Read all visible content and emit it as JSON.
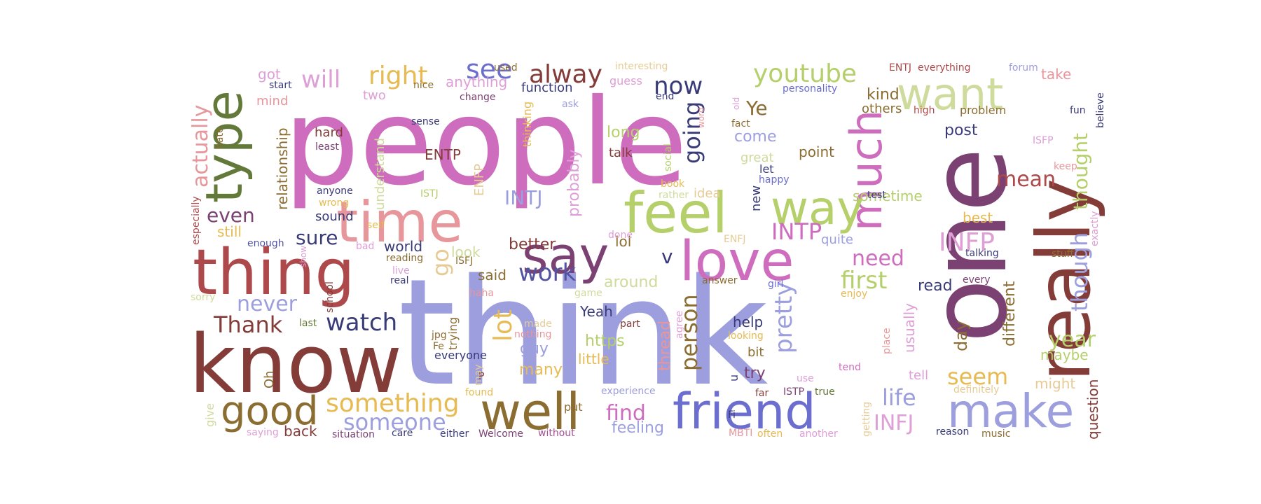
{
  "word_cloud": {
    "palette": {
      "orchid": "#ce6dbd",
      "periwinkle": "#9c9ede",
      "plum": "#7b4173",
      "brick": "#843c39",
      "rose": "#ad494a",
      "salmon": "#e7969c",
      "olive": "#637939",
      "lime": "#b5cf6b",
      "sage": "#cedb9c",
      "bronze": "#8c6d31",
      "gold": "#e7ba52",
      "sand": "#e7cb94",
      "navy": "#393b79",
      "indigo": "#5254a3",
      "blue": "#6b6ecf",
      "pink": "#de9ed6",
      "mauve": "#a55194"
    },
    "words": [
      {
        "text": "think",
        "color": "periwinkle"
      },
      {
        "text": "people",
        "color": "orchid"
      },
      {
        "text": "one",
        "color": "plum"
      },
      {
        "text": "know",
        "color": "brick"
      },
      {
        "text": "really",
        "color": "brick"
      },
      {
        "text": "thing",
        "color": "rose"
      },
      {
        "text": "time",
        "color": "salmon"
      },
      {
        "text": "feel",
        "color": "lime"
      },
      {
        "text": "want",
        "color": "sage"
      },
      {
        "text": "type",
        "color": "olive"
      },
      {
        "text": "much",
        "color": "orchid"
      },
      {
        "text": "say",
        "color": "plum"
      },
      {
        "text": "love",
        "color": "orchid"
      },
      {
        "text": "way",
        "color": "lime"
      },
      {
        "text": "well",
        "color": "bronze"
      },
      {
        "text": "friend",
        "color": "blue"
      },
      {
        "text": "make",
        "color": "periwinkle"
      },
      {
        "text": "good",
        "color": "bronze"
      },
      {
        "text": "something",
        "color": "gold"
      },
      {
        "text": "someone",
        "color": "periwinkle"
      },
      {
        "text": "watch",
        "color": "navy"
      },
      {
        "text": "Thank",
        "color": "brick"
      },
      {
        "text": "never",
        "color": "periwinkle"
      },
      {
        "text": "actually",
        "color": "salmon"
      },
      {
        "text": "will",
        "color": "pink"
      },
      {
        "text": "right",
        "color": "gold"
      },
      {
        "text": "see",
        "color": "blue"
      },
      {
        "text": "alway",
        "color": "brick"
      },
      {
        "text": "now",
        "color": "navy"
      },
      {
        "text": "youtube",
        "color": "lime"
      },
      {
        "text": "Ye",
        "color": "bronze"
      },
      {
        "text": "going",
        "color": "navy"
      },
      {
        "text": "INTJ",
        "color": "periwinkle"
      },
      {
        "text": "INTP",
        "color": "orchid"
      },
      {
        "text": "INFP",
        "color": "pink"
      },
      {
        "text": "INFJ",
        "color": "pink"
      },
      {
        "text": "ENTP",
        "color": "brick"
      },
      {
        "text": "even",
        "color": "plum"
      },
      {
        "text": "sure",
        "color": "navy"
      },
      {
        "text": "work",
        "color": "indigo"
      },
      {
        "text": "v",
        "color": "navy"
      },
      {
        "text": "lot",
        "color": "gold"
      },
      {
        "text": "person",
        "color": "bronze"
      },
      {
        "text": "pretty",
        "color": "periwinkle"
      },
      {
        "text": "mean",
        "color": "rose"
      },
      {
        "text": "need",
        "color": "orchid"
      },
      {
        "text": "first",
        "color": "lime"
      },
      {
        "text": "thought",
        "color": "lime"
      },
      {
        "text": "though",
        "color": "periwinkle"
      },
      {
        "text": "life",
        "color": "periwinkle"
      },
      {
        "text": "seem",
        "color": "gold"
      },
      {
        "text": "year",
        "color": "lime"
      },
      {
        "text": "find",
        "color": "orchid"
      },
      {
        "text": "feeling",
        "color": "periwinkle"
      },
      {
        "text": "little",
        "color": "gold"
      },
      {
        "text": "https",
        "color": "lime"
      },
      {
        "text": "guy",
        "color": "periwinkle"
      },
      {
        "text": "many",
        "color": "gold"
      },
      {
        "text": "Yeah",
        "color": "navy"
      },
      {
        "text": "around",
        "color": "sage"
      },
      {
        "text": "said",
        "color": "bronze"
      },
      {
        "text": "look",
        "color": "sage"
      },
      {
        "text": "go",
        "color": "sand"
      },
      {
        "text": "better",
        "color": "brick"
      },
      {
        "text": "probably",
        "color": "pink"
      },
      {
        "text": "long",
        "color": "lime"
      },
      {
        "text": "talk",
        "color": "brick"
      },
      {
        "text": "come",
        "color": "periwinkle"
      },
      {
        "text": "idea",
        "color": "sand"
      },
      {
        "text": "lol",
        "color": "bronze"
      },
      {
        "text": "kind",
        "color": "bronze"
      },
      {
        "text": "post",
        "color": "navy"
      },
      {
        "text": "sometime",
        "color": "lime"
      },
      {
        "text": "best",
        "color": "gold"
      },
      {
        "text": "read",
        "color": "navy"
      },
      {
        "text": "day",
        "color": "bronze"
      },
      {
        "text": "different",
        "color": "bronze"
      },
      {
        "text": "maybe",
        "color": "lime"
      },
      {
        "text": "might",
        "color": "sand"
      },
      {
        "text": "question",
        "color": "brick"
      },
      {
        "text": "usually",
        "color": "pink"
      },
      {
        "text": "tell",
        "color": "pink"
      },
      {
        "text": "help",
        "color": "navy"
      },
      {
        "text": "try",
        "color": "plum"
      },
      {
        "text": "bit",
        "color": "bronze"
      },
      {
        "text": "point",
        "color": "bronze"
      },
      {
        "text": "thread",
        "color": "salmon"
      },
      {
        "text": "relationship",
        "color": "bronze"
      },
      {
        "text": "understand",
        "color": "sage"
      },
      {
        "text": "still",
        "color": "gold"
      },
      {
        "text": "sound",
        "color": "navy"
      },
      {
        "text": "world",
        "color": "navy"
      },
      {
        "text": "hard",
        "color": "brick"
      },
      {
        "text": "got",
        "color": "pink"
      },
      {
        "text": "mind",
        "color": "salmon"
      },
      {
        "text": "two",
        "color": "pink"
      },
      {
        "text": "anything",
        "color": "pink"
      },
      {
        "text": "function",
        "color": "navy"
      },
      {
        "text": "guess",
        "color": "pink"
      },
      {
        "text": "thinking",
        "color": "gold"
      },
      {
        "text": "ENFP",
        "color": "sand"
      },
      {
        "text": "others",
        "color": "bronze"
      },
      {
        "text": "problem",
        "color": "bronze"
      },
      {
        "text": "take",
        "color": "salmon"
      },
      {
        "text": "quite",
        "color": "periwinkle"
      },
      {
        "text": "everyone",
        "color": "navy"
      },
      {
        "text": "trying",
        "color": "bronze"
      },
      {
        "text": "Oh",
        "color": "bronze"
      },
      {
        "text": "back",
        "color": "brick"
      },
      {
        "text": "give",
        "color": "sage"
      },
      {
        "text": "school",
        "color": "brick"
      },
      {
        "text": "put",
        "color": "bronze"
      },
      {
        "text": "jpg",
        "color": "bronze"
      },
      {
        "text": "Fe",
        "color": "bronze"
      },
      {
        "text": "P",
        "color": "brick"
      },
      {
        "text": "D",
        "color": "brick"
      },
      {
        "text": "ENTJ",
        "color": "rose"
      },
      {
        "text": "everything",
        "color": "rose"
      },
      {
        "text": "forum",
        "color": "periwinkle"
      },
      {
        "text": "fun",
        "color": "navy"
      },
      {
        "text": "believe",
        "color": "navy"
      },
      {
        "text": "personality",
        "color": "blue"
      },
      {
        "text": "interesting",
        "color": "sand"
      },
      {
        "text": "used",
        "color": "bronze"
      },
      {
        "text": "nice",
        "color": "bronze"
      },
      {
        "text": "start",
        "color": "navy"
      },
      {
        "text": "change",
        "color": "plum"
      },
      {
        "text": "end",
        "color": "navy"
      },
      {
        "text": "ask",
        "color": "periwinkle"
      },
      {
        "text": "high",
        "color": "rose"
      },
      {
        "text": "sense",
        "color": "navy"
      },
      {
        "text": "least",
        "color": "plum"
      },
      {
        "text": "hate",
        "color": "bronze"
      },
      {
        "text": "fact",
        "color": "bronze"
      },
      {
        "text": "word",
        "color": "salmon"
      },
      {
        "text": "old",
        "color": "pink"
      },
      {
        "text": "social",
        "color": "lime"
      },
      {
        "text": "great",
        "color": "sage"
      },
      {
        "text": "let",
        "color": "navy"
      },
      {
        "text": "happy",
        "color": "blue"
      },
      {
        "text": "keep",
        "color": "salmon"
      },
      {
        "text": "ISFP",
        "color": "pink"
      },
      {
        "text": "exactly",
        "color": "pink"
      },
      {
        "text": "stuff",
        "color": "bronze"
      },
      {
        "text": "test",
        "color": "navy"
      },
      {
        "text": "book",
        "color": "gold"
      },
      {
        "text": "rather",
        "color": "sage"
      },
      {
        "text": "new",
        "color": "navy"
      },
      {
        "text": "ISTJ",
        "color": "lime"
      },
      {
        "text": "anyone",
        "color": "navy"
      },
      {
        "text": "wrong",
        "color": "gold"
      },
      {
        "text": "especially",
        "color": "rose"
      },
      {
        "text": "enough",
        "color": "indigo"
      },
      {
        "text": "self",
        "color": "gold"
      },
      {
        "text": "bad",
        "color": "pink"
      },
      {
        "text": "show",
        "color": "pink"
      },
      {
        "text": "reading",
        "color": "bronze"
      },
      {
        "text": "ISFJ",
        "color": "bronze"
      },
      {
        "text": "live",
        "color": "pink"
      },
      {
        "text": "real",
        "color": "navy"
      },
      {
        "text": "done",
        "color": "pink"
      },
      {
        "text": "ENFJ",
        "color": "sand"
      },
      {
        "text": "answer",
        "color": "bronze"
      },
      {
        "text": "girl",
        "color": "blue"
      },
      {
        "text": "talking",
        "color": "navy"
      },
      {
        "text": "every",
        "color": "plum"
      },
      {
        "text": "enjoy",
        "color": "gold"
      },
      {
        "text": "sorry",
        "color": "sage"
      },
      {
        "text": "last",
        "color": "olive"
      },
      {
        "text": "haha",
        "color": "salmon"
      },
      {
        "text": "game",
        "color": "sage"
      },
      {
        "text": "made",
        "color": "sand"
      },
      {
        "text": "part",
        "color": "brick"
      },
      {
        "text": "agree",
        "color": "pink"
      },
      {
        "text": "nothing",
        "color": "salmon"
      },
      {
        "text": "looking",
        "color": "gold"
      },
      {
        "text": "place",
        "color": "salmon"
      },
      {
        "text": "tend",
        "color": "orchid"
      },
      {
        "text": "use",
        "color": "pink"
      },
      {
        "text": "u",
        "color": "navy"
      },
      {
        "text": "may",
        "color": "sand"
      },
      {
        "text": "found",
        "color": "gold"
      },
      {
        "text": "experience",
        "color": "periwinkle"
      },
      {
        "text": "far",
        "color": "brick"
      },
      {
        "text": "Fi",
        "color": "navy"
      },
      {
        "text": "ISTP",
        "color": "plum"
      },
      {
        "text": "true",
        "color": "olive"
      },
      {
        "text": "definitely",
        "color": "sand"
      },
      {
        "text": "getting",
        "color": "sand"
      },
      {
        "text": "saying",
        "color": "pink"
      },
      {
        "text": "situation",
        "color": "plum"
      },
      {
        "text": "care",
        "color": "navy"
      },
      {
        "text": "either",
        "color": "navy"
      },
      {
        "text": "Welcome",
        "color": "plum"
      },
      {
        "text": "without",
        "color": "mauve"
      },
      {
        "text": "MBTI",
        "color": "salmon"
      },
      {
        "text": "often",
        "color": "gold"
      },
      {
        "text": "another",
        "color": "pink"
      },
      {
        "text": "reason",
        "color": "navy"
      },
      {
        "text": "music",
        "color": "bronze"
      }
    ]
  }
}
